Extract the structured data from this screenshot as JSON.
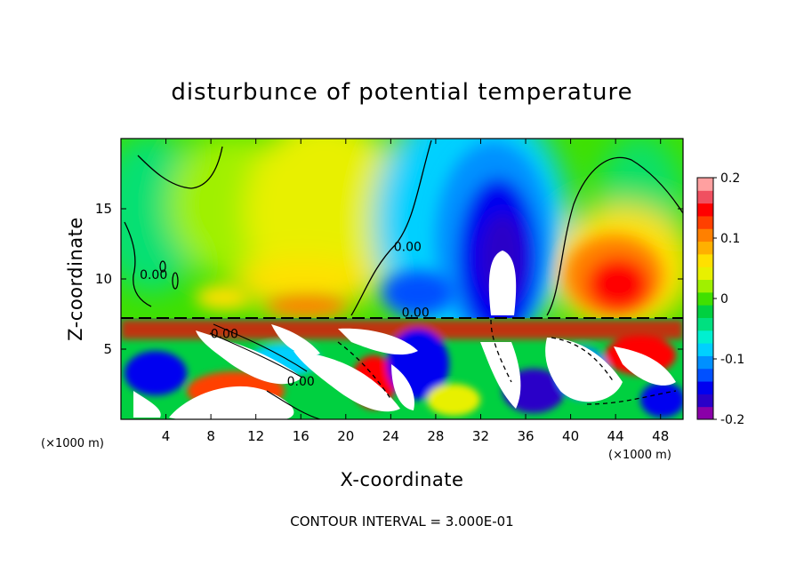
{
  "chart_data": {
    "type": "heatmap",
    "title": "disturbunce of potential temperature",
    "xlabel": "X-coordinate",
    "ylabel": "Z-coordinate",
    "x_unit": "(×1000 m)",
    "y_unit": "(×1000 m)",
    "xlim": [
      0,
      50
    ],
    "ylim": [
      0,
      20
    ],
    "x_ticks": [
      "4",
      "8",
      "12",
      "16",
      "20",
      "24",
      "28",
      "32",
      "36",
      "40",
      "44",
      "48"
    ],
    "y_ticks": [
      "5",
      "10",
      "15"
    ],
    "x_tick_values": [
      4,
      8,
      12,
      16,
      20,
      24,
      28,
      32,
      36,
      40,
      44,
      48
    ],
    "y_tick_values": [
      5,
      10,
      15
    ],
    "colorbar": {
      "range": [
        -0.2,
        0.2
      ],
      "tick_labels": [
        "0.2",
        "0.1",
        "0",
        "-0.1",
        "-0.2"
      ],
      "tick_values": [
        0.2,
        0.1,
        0,
        -0.1,
        -0.2
      ],
      "colors": [
        "#8a00a8",
        "#2a00c8",
        "#0000f0",
        "#0050ff",
        "#0090ff",
        "#00d0ff",
        "#00f0d0",
        "#00e080",
        "#00d040",
        "#40e000",
        "#a0f000",
        "#e8f000",
        "#ffe000",
        "#ffb000",
        "#ff8000",
        "#ff4000",
        "#ff0000",
        "#f05060",
        "#ffa0a0"
      ]
    },
    "contour_labels": [
      {
        "text": "0.00",
        "x": 25.5,
        "y": 12.0
      },
      {
        "text": "0.00",
        "x": 2.9,
        "y": 10.0
      },
      {
        "text": "0.00",
        "x": 26.2,
        "y": 7.3
      },
      {
        "text": "0.00",
        "x": 9.2,
        "y": 5.8
      },
      {
        "text": "0.00",
        "x": 16.0,
        "y": 2.4
      }
    ]
  },
  "footer": {
    "contour_interval": "CONTOUR INTERVAL = 3.000E-01"
  }
}
